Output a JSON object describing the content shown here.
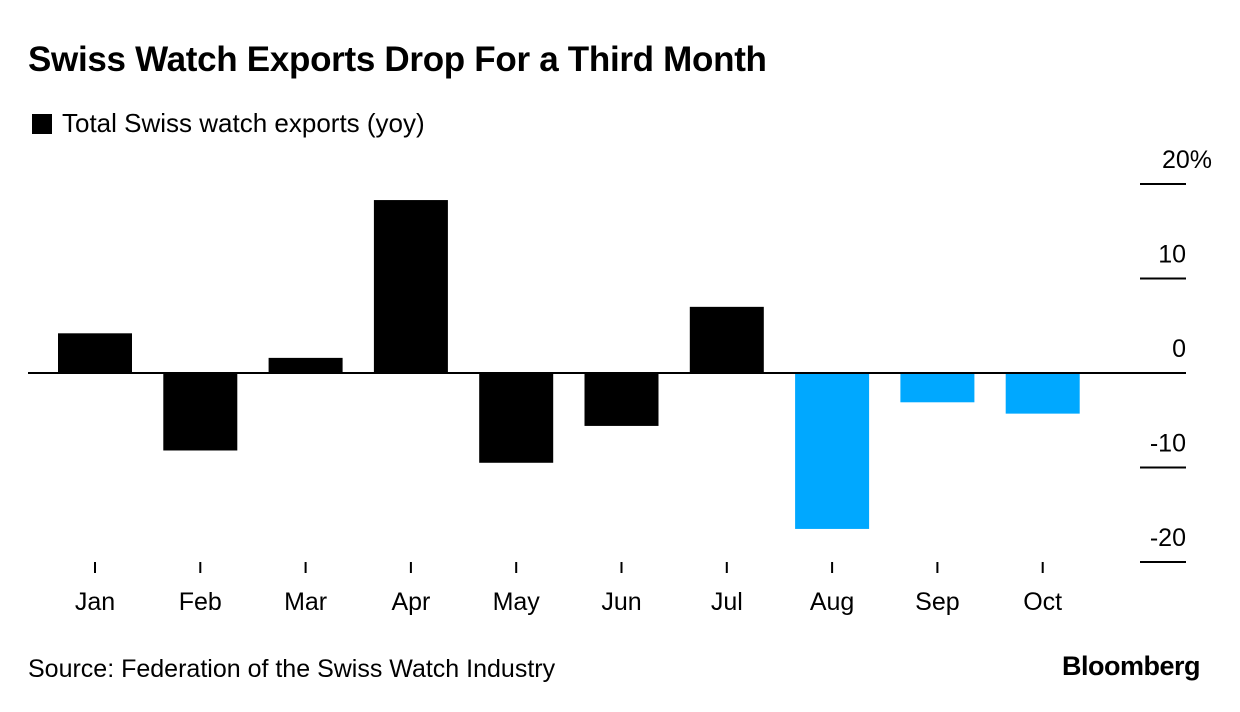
{
  "title": "Swiss Watch Exports Drop For a Third Month",
  "legend": {
    "label": "Total Swiss watch exports (yoy)",
    "color": "#000000"
  },
  "source": "Source: Federation of the Swiss Watch Industry",
  "brand": "Bloomberg",
  "chart_data": {
    "type": "bar",
    "title": "Swiss Watch Exports Drop For a Third Month",
    "xlabel": "",
    "ylabel": "",
    "categories": [
      "Jan",
      "Feb",
      "Mar",
      "Apr",
      "May",
      "Jun",
      "Jul",
      "Aug",
      "Sep",
      "Oct"
    ],
    "series": [
      {
        "name": "Total Swiss watch exports (yoy)",
        "values": [
          4.2,
          -8.2,
          1.6,
          18.3,
          -9.5,
          -5.6,
          7.0,
          -16.5,
          -3.1,
          -4.3
        ]
      }
    ],
    "bar_colors": [
      "#000000",
      "#000000",
      "#000000",
      "#000000",
      "#000000",
      "#000000",
      "#000000",
      "#00a8ff",
      "#00a8ff",
      "#00a8ff"
    ],
    "ylim": [
      -20,
      20
    ],
    "yticks": [
      20,
      10,
      0,
      -10,
      -20
    ],
    "ytick_labels": [
      "20%",
      "10",
      "0",
      "-10",
      "-20"
    ],
    "legend_position": "top-left",
    "grid": false
  }
}
